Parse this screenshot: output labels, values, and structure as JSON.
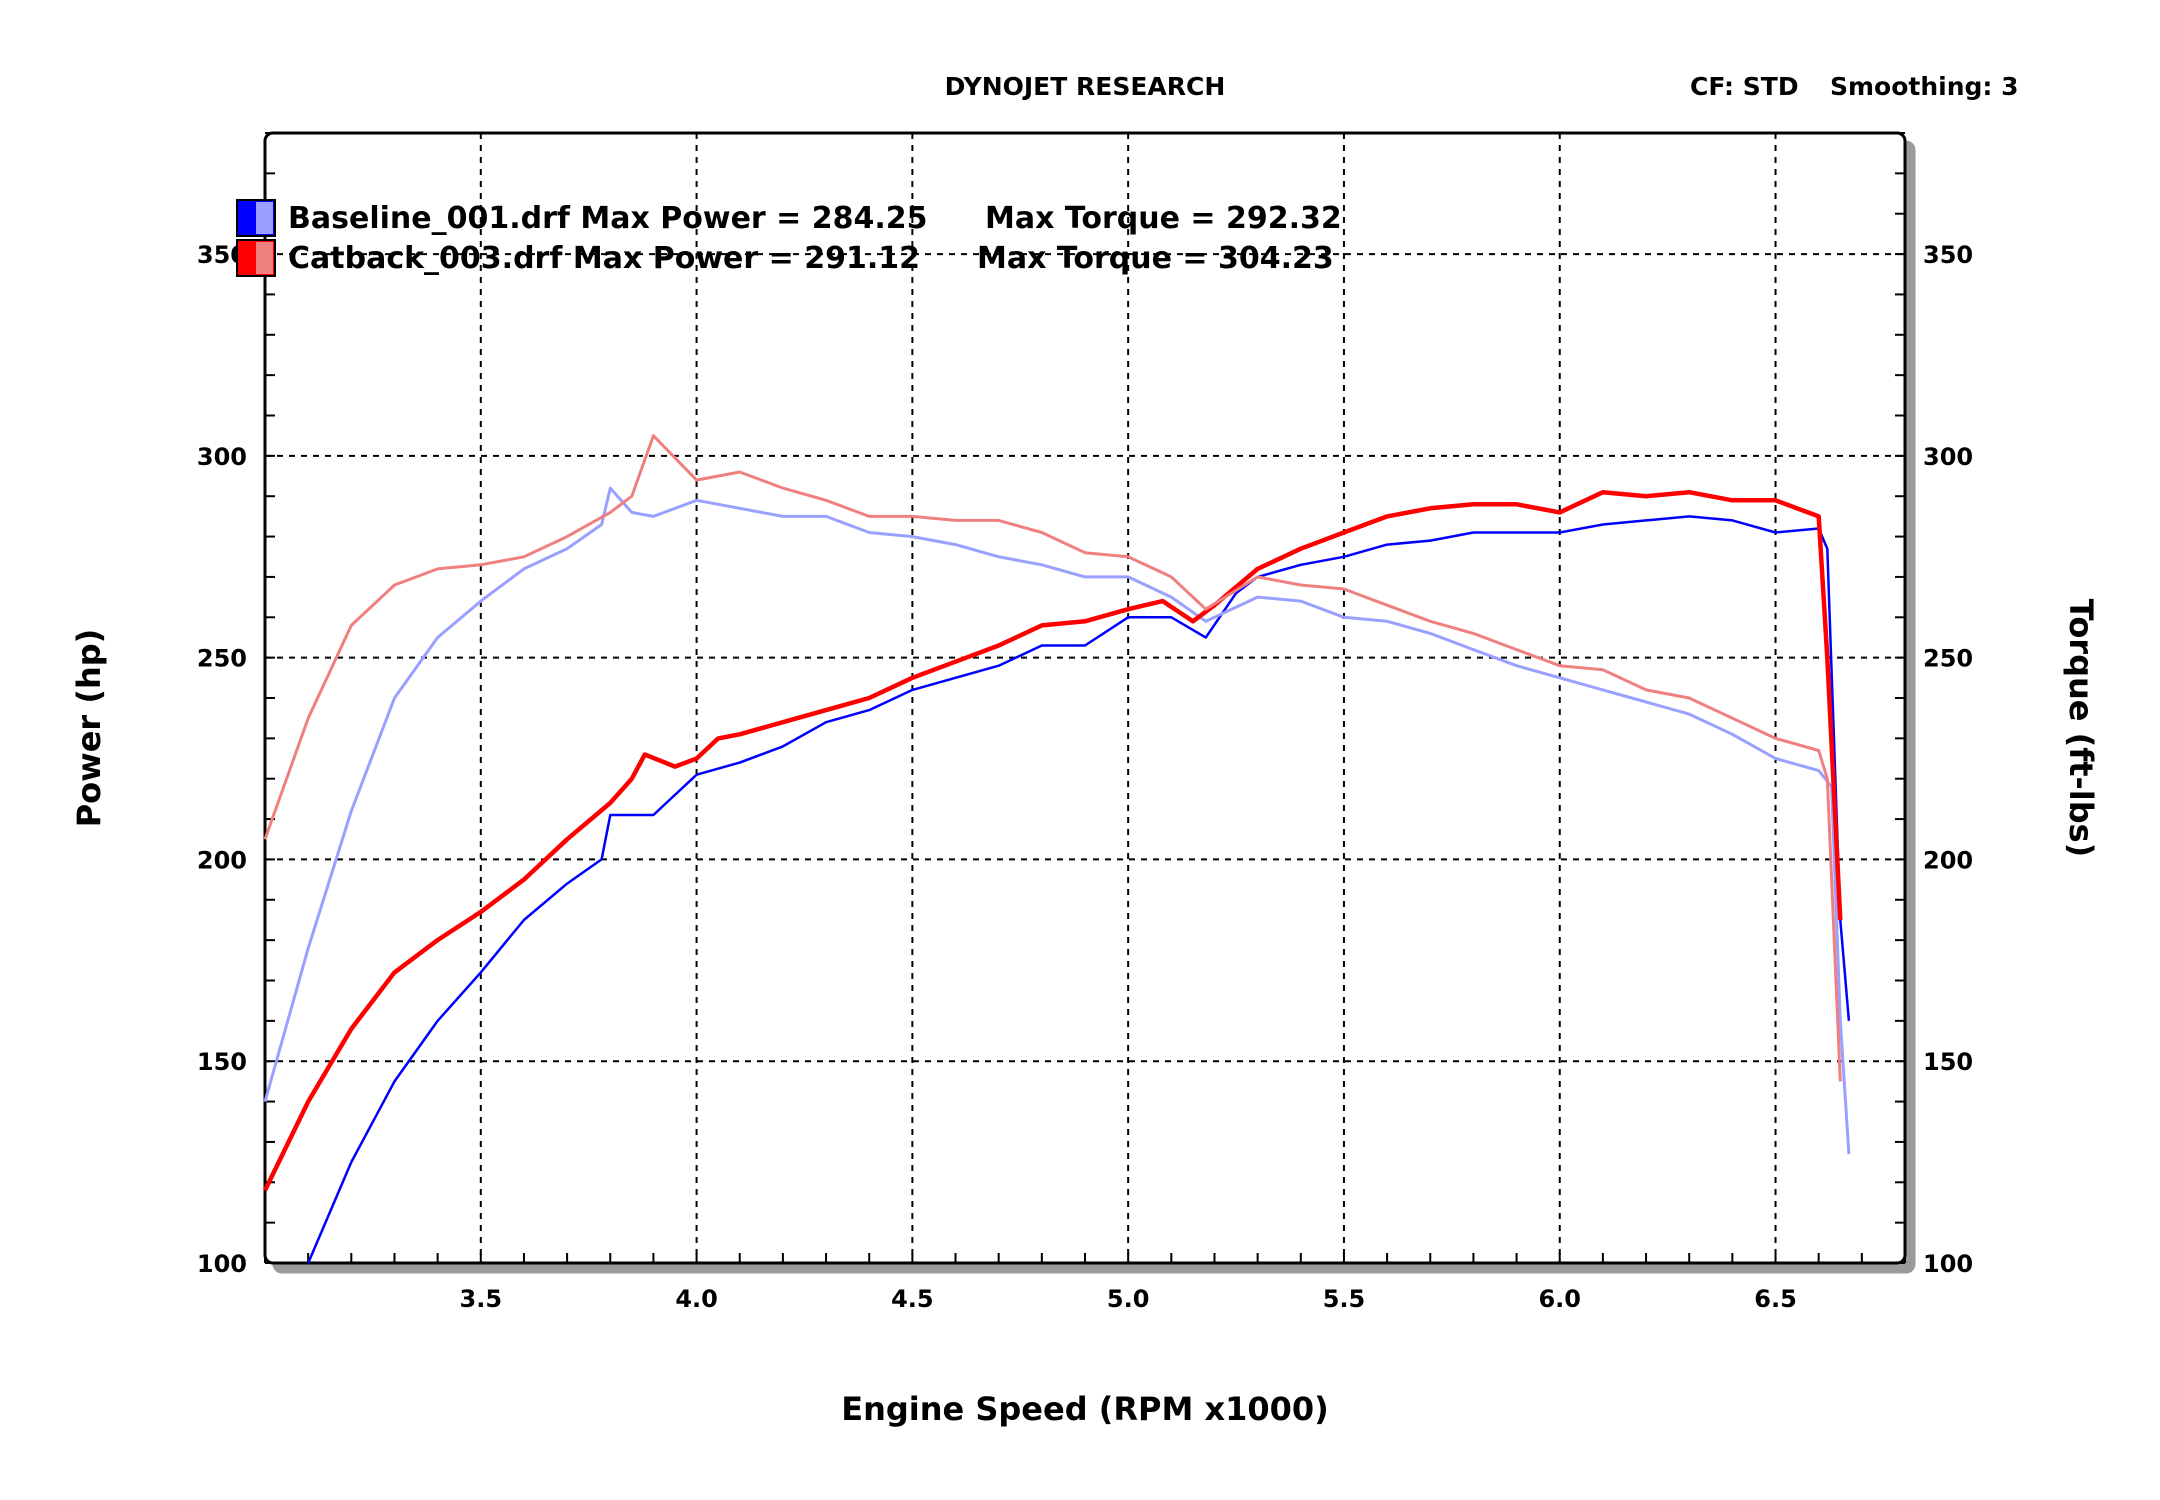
{
  "header": {
    "title": "DYNOJET RESEARCH",
    "correction": "CF: STD",
    "smoothing": "Smoothing: 3"
  },
  "legend": [
    {
      "label": "Baseline_001.drf Max Power = 284.25",
      "torque_label": "Max Torque = 292.32",
      "color": "#0000ff"
    },
    {
      "label": "Catback_003.drf Max Power = 291.12",
      "torque_label": "Max Torque = 304.23",
      "color": "#ff0000"
    }
  ],
  "chart_data": {
    "type": "line",
    "xlabel": "Engine Speed (RPM x1000)",
    "ylabel": "Power (hp)",
    "y2label": "Torque (ft-lbs)",
    "xlim": [
      3.0,
      6.8
    ],
    "ylim": [
      100,
      380
    ],
    "y2lim": [
      100,
      380
    ],
    "xticks": [
      "3.5",
      "4.0",
      "4.5",
      "5.0",
      "5.5",
      "6.0",
      "6.5"
    ],
    "yticks": [
      "100",
      "150",
      "200",
      "250",
      "300",
      "350"
    ],
    "y2ticks": [
      "100",
      "150",
      "200",
      "250",
      "300",
      "350"
    ],
    "grid": true,
    "legend_position": "top-left",
    "series": [
      {
        "name": "Baseline_001.drf",
        "kind": "power",
        "color": "#0000ff",
        "x": [
          3.1,
          3.2,
          3.3,
          3.4,
          3.5,
          3.6,
          3.7,
          3.78,
          3.8,
          3.9,
          4.0,
          4.1,
          4.2,
          4.3,
          4.4,
          4.5,
          4.6,
          4.7,
          4.8,
          4.9,
          5.0,
          5.1,
          5.18,
          5.25,
          5.3,
          5.4,
          5.5,
          5.6,
          5.7,
          5.8,
          5.9,
          6.0,
          6.1,
          6.2,
          6.3,
          6.4,
          6.5,
          6.6,
          6.62,
          6.65,
          6.67
        ],
        "y": [
          100,
          125,
          145,
          160,
          172,
          185,
          194,
          200,
          211,
          211,
          221,
          224,
          228,
          234,
          237,
          242,
          245,
          248,
          253,
          253,
          260,
          260,
          255,
          266,
          270,
          273,
          275,
          278,
          279,
          281,
          281,
          281,
          283,
          284,
          285,
          284,
          281,
          282,
          277,
          185,
          160
        ]
      },
      {
        "name": "Baseline_001.drf",
        "kind": "torque",
        "color": "#9aa0ff",
        "x": [
          3.0,
          3.1,
          3.2,
          3.3,
          3.4,
          3.5,
          3.6,
          3.7,
          3.78,
          3.8,
          3.85,
          3.9,
          4.0,
          4.1,
          4.2,
          4.3,
          4.4,
          4.5,
          4.6,
          4.7,
          4.8,
          4.9,
          5.0,
          5.1,
          5.18,
          5.3,
          5.4,
          5.5,
          5.6,
          5.7,
          5.8,
          5.9,
          6.0,
          6.1,
          6.2,
          6.3,
          6.4,
          6.5,
          6.6,
          6.63,
          6.65,
          6.67
        ],
        "y": [
          140,
          178,
          212,
          240,
          255,
          264,
          272,
          277,
          283,
          292,
          286,
          285,
          289,
          287,
          285,
          285,
          281,
          280,
          278,
          275,
          273,
          270,
          270,
          265,
          259,
          265,
          264,
          260,
          259,
          256,
          252,
          248,
          245,
          242,
          239,
          236,
          231,
          225,
          222,
          218,
          160,
          127
        ]
      },
      {
        "name": "Catback_003.drf",
        "kind": "power",
        "color": "#ff0000",
        "x": [
          3.0,
          3.1,
          3.2,
          3.3,
          3.4,
          3.5,
          3.6,
          3.7,
          3.8,
          3.85,
          3.88,
          3.95,
          4.0,
          4.05,
          4.1,
          4.2,
          4.3,
          4.4,
          4.5,
          4.6,
          4.7,
          4.8,
          4.9,
          5.0,
          5.08,
          5.15,
          5.2,
          5.3,
          5.4,
          5.5,
          5.6,
          5.7,
          5.8,
          5.9,
          6.0,
          6.1,
          6.2,
          6.3,
          6.4,
          6.5,
          6.6,
          6.62,
          6.65
        ],
        "y": [
          118,
          140,
          158,
          172,
          180,
          187,
          195,
          205,
          214,
          220,
          226,
          223,
          225,
          230,
          231,
          234,
          237,
          240,
          245,
          249,
          253,
          258,
          259,
          262,
          264,
          259,
          263,
          272,
          277,
          281,
          285,
          287,
          288,
          288,
          286,
          291,
          290,
          291,
          289,
          289,
          285,
          250,
          185
        ]
      },
      {
        "name": "Catback_003.drf",
        "kind": "torque",
        "color": "#f08080",
        "x": [
          3.0,
          3.1,
          3.2,
          3.3,
          3.4,
          3.5,
          3.6,
          3.7,
          3.8,
          3.85,
          3.9,
          4.0,
          4.1,
          4.2,
          4.3,
          4.4,
          4.5,
          4.6,
          4.7,
          4.8,
          4.9,
          5.0,
          5.1,
          5.18,
          5.3,
          5.4,
          5.5,
          5.6,
          5.7,
          5.8,
          5.9,
          6.0,
          6.1,
          6.2,
          6.3,
          6.4,
          6.5,
          6.6,
          6.62,
          6.65
        ],
        "y": [
          205,
          235,
          258,
          268,
          272,
          273,
          275,
          280,
          286,
          290,
          305,
          294,
          296,
          292,
          289,
          285,
          285,
          284,
          284,
          281,
          276,
          275,
          270,
          262,
          270,
          268,
          267,
          263,
          259,
          256,
          252,
          248,
          247,
          242,
          240,
          235,
          230,
          227,
          220,
          145
        ]
      }
    ]
  }
}
